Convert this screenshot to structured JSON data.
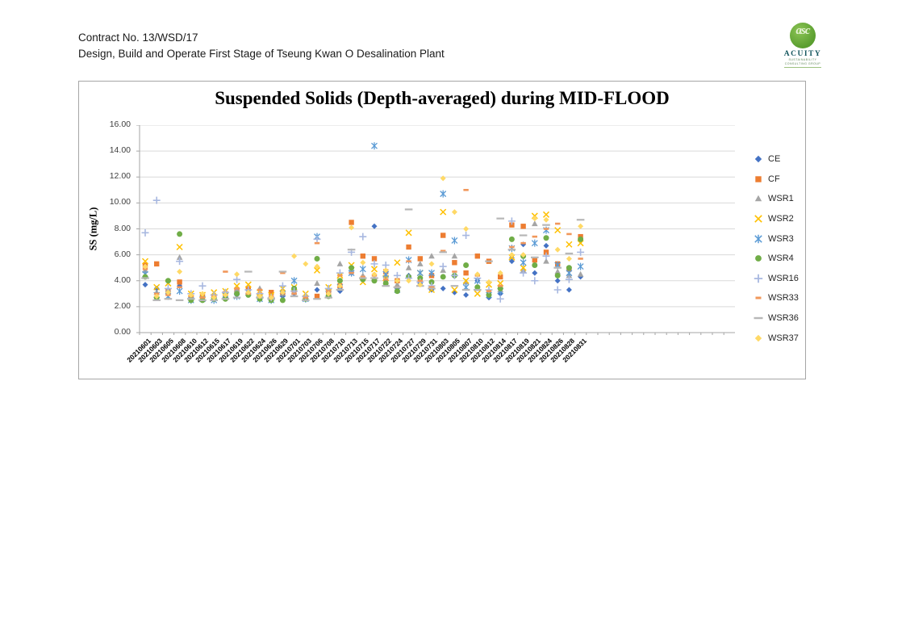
{
  "header": {
    "line1": "Contract No. 13/WSD/17",
    "line2": "Design, Build and Operate First Stage of Tseung Kwan O Desalination Plant"
  },
  "logo": {
    "monogram": "asc",
    "name": "ACUITY",
    "tagline1": "SUSTAINABILITY",
    "tagline2": "CONSULTING GROUP",
    "circle_color": "#5a9e2f",
    "text_color": "#14565e"
  },
  "chart_data": {
    "type": "scatter",
    "title": "Suspended Solids (Depth-averaged) during MID-FLOOD",
    "xlabel": "",
    "ylabel": "SS (mg/L)",
    "ylim": [
      0,
      16
    ],
    "ytick_step": 2,
    "ytick_labels": [
      "16.00",
      "14.00",
      "12.00",
      "10.00",
      "8.00",
      "6.00",
      "4.00",
      "2.00",
      "0.00"
    ],
    "grid": true,
    "legend_position": "right",
    "categories": [
      "20210601",
      "20210603",
      "20210605",
      "20210608",
      "20210610",
      "20210612",
      "20210615",
      "20210617",
      "20210619",
      "20210622",
      "20210624",
      "20210626",
      "20210629",
      "20210701",
      "20210703",
      "20210706",
      "20210708",
      "20210710",
      "20210713",
      "20210715",
      "20210717",
      "20210722",
      "20210724",
      "20210727",
      "20210729",
      "20210731",
      "20210803",
      "20210805",
      "20210807",
      "20210810",
      "20210812",
      "20210814",
      "20210817",
      "20210819",
      "20210821",
      "20210824",
      "20210826",
      "20210828",
      "20210831"
    ],
    "series": [
      {
        "name": "CE",
        "marker": "diamond",
        "color": "#4472C4",
        "values": [
          3.7,
          3.4,
          3.0,
          3.6,
          2.6,
          2.7,
          2.6,
          2.8,
          2.9,
          3.0,
          2.7,
          2.6,
          2.8,
          3.0,
          2.6,
          3.3,
          2.9,
          3.2,
          4.6,
          4.1,
          8.2,
          4.0,
          3.4,
          4.4,
          3.8,
          3.3,
          3.4,
          3.1,
          2.9,
          4.0,
          2.7,
          3.0,
          5.5,
          6.8,
          4.6,
          6.7,
          4.0,
          3.3,
          4.3
        ]
      },
      {
        "name": "CF",
        "marker": "square",
        "color": "#ED7D31",
        "values": [
          5.2,
          5.3,
          3.2,
          3.9,
          2.7,
          2.8,
          2.7,
          3.0,
          3.2,
          3.4,
          2.9,
          3.1,
          3.0,
          3.3,
          2.7,
          2.8,
          3.1,
          3.6,
          8.5,
          5.9,
          5.7,
          4.7,
          4.0,
          6.6,
          5.7,
          4.4,
          7.5,
          5.4,
          4.6,
          5.9,
          5.5,
          4.3,
          8.3,
          8.2,
          5.6,
          6.2,
          5.3,
          4.9,
          7.4
        ]
      },
      {
        "name": "WSR1",
        "marker": "triangle",
        "color": "#A5A5A5",
        "values": [
          4.8,
          3.1,
          3.3,
          5.8,
          2.8,
          2.6,
          2.9,
          2.7,
          3.3,
          3.2,
          3.4,
          2.8,
          3.2,
          3.1,
          2.8,
          3.8,
          3.3,
          5.3,
          4.8,
          4.4,
          4.2,
          4.4,
          3.7,
          5.0,
          5.3,
          5.9,
          4.8,
          5.9,
          3.9,
          3.4,
          3.1,
          3.3,
          5.9,
          4.8,
          8.4,
          5.5,
          4.7,
          4.4,
          4.5
        ]
      },
      {
        "name": "WSR2",
        "marker": "x",
        "color": "#FFC000",
        "values": [
          5.5,
          3.5,
          3.8,
          6.6,
          3.0,
          2.9,
          3.1,
          3.2,
          3.6,
          3.7,
          3.1,
          2.9,
          3.4,
          3.5,
          3.0,
          4.8,
          3.5,
          4.4,
          5.2,
          3.9,
          4.9,
          4.2,
          5.4,
          7.7,
          4.6,
          3.3,
          9.3,
          3.3,
          4.0,
          3.0,
          3.7,
          3.8,
          5.8,
          5.0,
          9.0,
          9.1,
          7.9,
          6.8,
          6.9
        ]
      },
      {
        "name": "WSR3",
        "marker": "asterisk",
        "color": "#5B9BD5",
        "values": [
          4.5,
          2.9,
          2.8,
          3.2,
          2.5,
          2.6,
          2.5,
          2.9,
          2.8,
          3.1,
          2.6,
          2.5,
          3.0,
          4.0,
          2.6,
          7.4,
          3.0,
          3.5,
          4.6,
          4.9,
          14.4,
          4.5,
          3.3,
          5.6,
          4.6,
          4.6,
          10.7,
          7.1,
          3.5,
          4.0,
          2.9,
          3.2,
          6.5,
          5.4,
          6.9,
          7.9,
          5.2,
          4.6,
          5.1
        ]
      },
      {
        "name": "WSR4",
        "marker": "circle",
        "color": "#70AD47",
        "values": [
          4.3,
          2.7,
          4.0,
          7.6,
          2.5,
          2.5,
          2.6,
          2.6,
          3.0,
          2.9,
          2.6,
          2.5,
          2.5,
          3.4,
          2.6,
          5.7,
          2.8,
          4.0,
          5.0,
          4.1,
          4.0,
          3.8,
          3.2,
          4.3,
          4.2,
          3.9,
          4.3,
          4.4,
          5.2,
          3.5,
          2.9,
          3.4,
          7.2,
          5.9,
          5.2,
          7.3,
          4.4,
          5.0,
          7.2
        ]
      },
      {
        "name": "WSR16",
        "marker": "plus",
        "color": "#A8B8E0",
        "values": [
          7.7,
          10.2,
          3.4,
          5.5,
          3.0,
          3.6,
          2.9,
          3.1,
          4.1,
          3.3,
          3.0,
          2.7,
          3.6,
          3.2,
          2.8,
          7.2,
          3.4,
          4.6,
          6.2,
          7.4,
          5.3,
          5.2,
          4.4,
          4.2,
          3.9,
          3.6,
          5.1,
          4.4,
          7.5,
          4.2,
          3.3,
          2.6,
          8.6,
          4.6,
          4.0,
          5.9,
          3.3,
          4.1,
          6.2
        ]
      },
      {
        "name": "WSR33",
        "marker": "dash-short",
        "color": "#F1975A",
        "values": [
          4.9,
          3.0,
          2.9,
          3.5,
          2.8,
          2.7,
          2.8,
          4.7,
          3.4,
          3.0,
          3.3,
          2.8,
          4.6,
          3.0,
          2.7,
          6.9,
          3.2,
          4.4,
          4.6,
          4.3,
          4.4,
          4.1,
          3.5,
          5.5,
          4.0,
          3.5,
          6.3,
          4.7,
          11.0,
          4.4,
          3.2,
          3.6,
          6.6,
          6.9,
          7.4,
          8.0,
          8.4,
          7.6,
          5.7
        ]
      },
      {
        "name": "WSR36",
        "marker": "dash",
        "color": "#B7B7B7",
        "values": [
          4.2,
          2.5,
          2.6,
          2.5,
          2.6,
          2.5,
          2.5,
          2.6,
          2.7,
          4.7,
          2.7,
          2.6,
          4.7,
          2.8,
          2.5,
          2.6,
          2.7,
          3.3,
          6.4,
          4.2,
          4.2,
          3.6,
          3.5,
          9.5,
          3.6,
          3.4,
          6.2,
          3.6,
          3.3,
          3.3,
          5.5,
          8.8,
          6.4,
          7.5,
          5.8,
          8.3,
          5.0,
          6.1,
          8.7
        ]
      },
      {
        "name": "WSR37",
        "marker": "diamond",
        "color": "#FFD966",
        "values": [
          5.1,
          2.8,
          3.1,
          4.7,
          2.9,
          3.0,
          2.7,
          2.9,
          4.5,
          3.1,
          2.8,
          2.7,
          3.1,
          5.9,
          5.3,
          5.1,
          3.0,
          3.6,
          8.1,
          5.4,
          4.5,
          4.8,
          4.0,
          4.0,
          3.7,
          5.3,
          11.9,
          9.3,
          8.0,
          4.5,
          3.9,
          4.6,
          6.0,
          6.0,
          8.8,
          8.7,
          6.4,
          5.7,
          8.2
        ]
      }
    ]
  }
}
